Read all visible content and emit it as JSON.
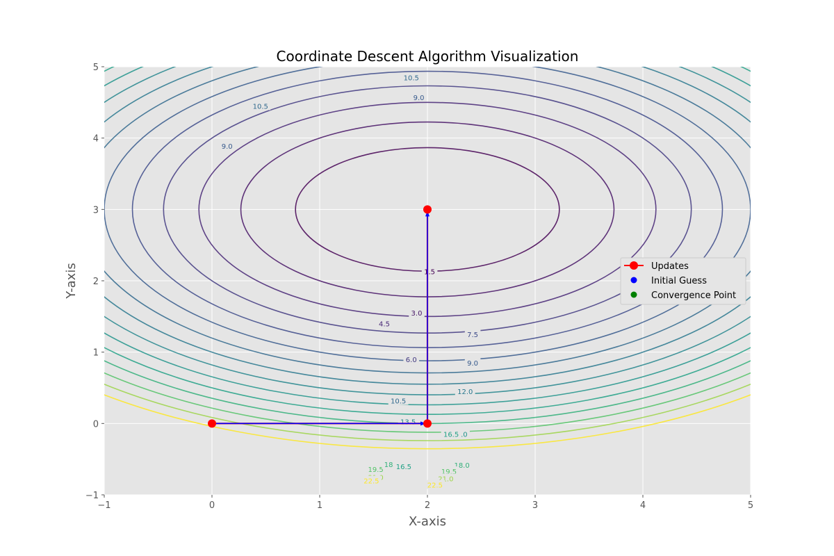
{
  "chart_data": {
    "type": "line",
    "title": "Coordinate Descent Algorithm Visualization",
    "xlabel": "X-axis",
    "ylabel": "Y-axis",
    "xlim": [
      -1,
      5
    ],
    "ylim": [
      -1,
      5
    ],
    "x_ticks": [
      "−1",
      "0",
      "1",
      "2",
      "3",
      "4",
      "5"
    ],
    "y_ticks": [
      "−1",
      "0",
      "1",
      "2",
      "3",
      "4",
      "5"
    ],
    "grid": true,
    "legend_position": "right",
    "contour": {
      "function": "(x-2)^2 + 2*(y-3)^2",
      "center": [
        2,
        3
      ],
      "levels": [
        1.5,
        3.0,
        4.5,
        6.0,
        7.5,
        9.0,
        10.5,
        12.0,
        13.5,
        15.0,
        16.5,
        18.0,
        19.5,
        21.0,
        22.5
      ],
      "level_labels": [
        "1.5",
        "3.0",
        "4.5",
        "6.0",
        "7.5",
        "9.0",
        "10.5",
        "12.0",
        "13.5",
        "15.0",
        "16.5",
        "18.0",
        "19.5",
        "21.0",
        "22.5"
      ],
      "colormap": "viridis"
    },
    "series": [
      {
        "name": "Updates",
        "color": "#ff0000",
        "marker": "circle",
        "x": [
          0,
          2,
          2
        ],
        "y": [
          0,
          0,
          3
        ]
      },
      {
        "name": "Initial Guess",
        "color": "#0000ff",
        "marker": "circle",
        "x": [
          0
        ],
        "y": [
          0
        ]
      },
      {
        "name": "Convergence Point",
        "color": "#008000",
        "marker": "circle",
        "x": [
          2
        ],
        "y": [
          3
        ]
      }
    ],
    "arrows": [
      {
        "from": [
          0,
          0
        ],
        "to": [
          2,
          0
        ],
        "color": "#0000ff"
      },
      {
        "from": [
          2,
          0
        ],
        "to": [
          2,
          3
        ],
        "color": "#0000ff"
      }
    ],
    "label_positions": [
      [
        1,
        10.5,
        0.45,
        4.45
      ],
      [
        1,
        9.0,
        0.14,
        3.89
      ],
      [
        1,
        3.0,
        1.9,
        1.55
      ],
      [
        1,
        4.5,
        1.6,
        1.4
      ],
      [
        1,
        6.0,
        1.85,
        0.9
      ],
      [
        1,
        10.5,
        1.73,
        0.32
      ],
      [
        1,
        13.5,
        1.82,
        0.03
      ],
      [
        1,
        19.5,
        1.52,
        -0.64
      ],
      [
        1,
        18.0,
        1.67,
        -0.57
      ],
      [
        1,
        16.5,
        1.78,
        -0.6
      ],
      [
        1,
        21.0,
        1.52,
        -0.75
      ],
      [
        1,
        22.5,
        1.48,
        -0.8
      ],
      [
        0,
        1.5,
        2.02,
        2.13
      ],
      [
        0,
        10.5,
        1.85,
        4.85
      ],
      [
        0,
        9.0,
        1.92,
        4.57
      ],
      [
        0,
        7.5,
        2.42,
        1.25
      ],
      [
        0,
        9.0,
        2.42,
        0.85
      ],
      [
        0,
        12.0,
        2.35,
        0.45
      ],
      [
        0,
        15.0,
        2.3,
        -0.15
      ],
      [
        0,
        16.5,
        2.22,
        -0.15
      ],
      [
        0,
        18.0,
        2.32,
        -0.58
      ],
      [
        0,
        19.5,
        2.2,
        -0.67
      ],
      [
        0,
        21.0,
        2.17,
        -0.77
      ],
      [
        0,
        22.5,
        2.07,
        -0.86
      ]
    ]
  }
}
